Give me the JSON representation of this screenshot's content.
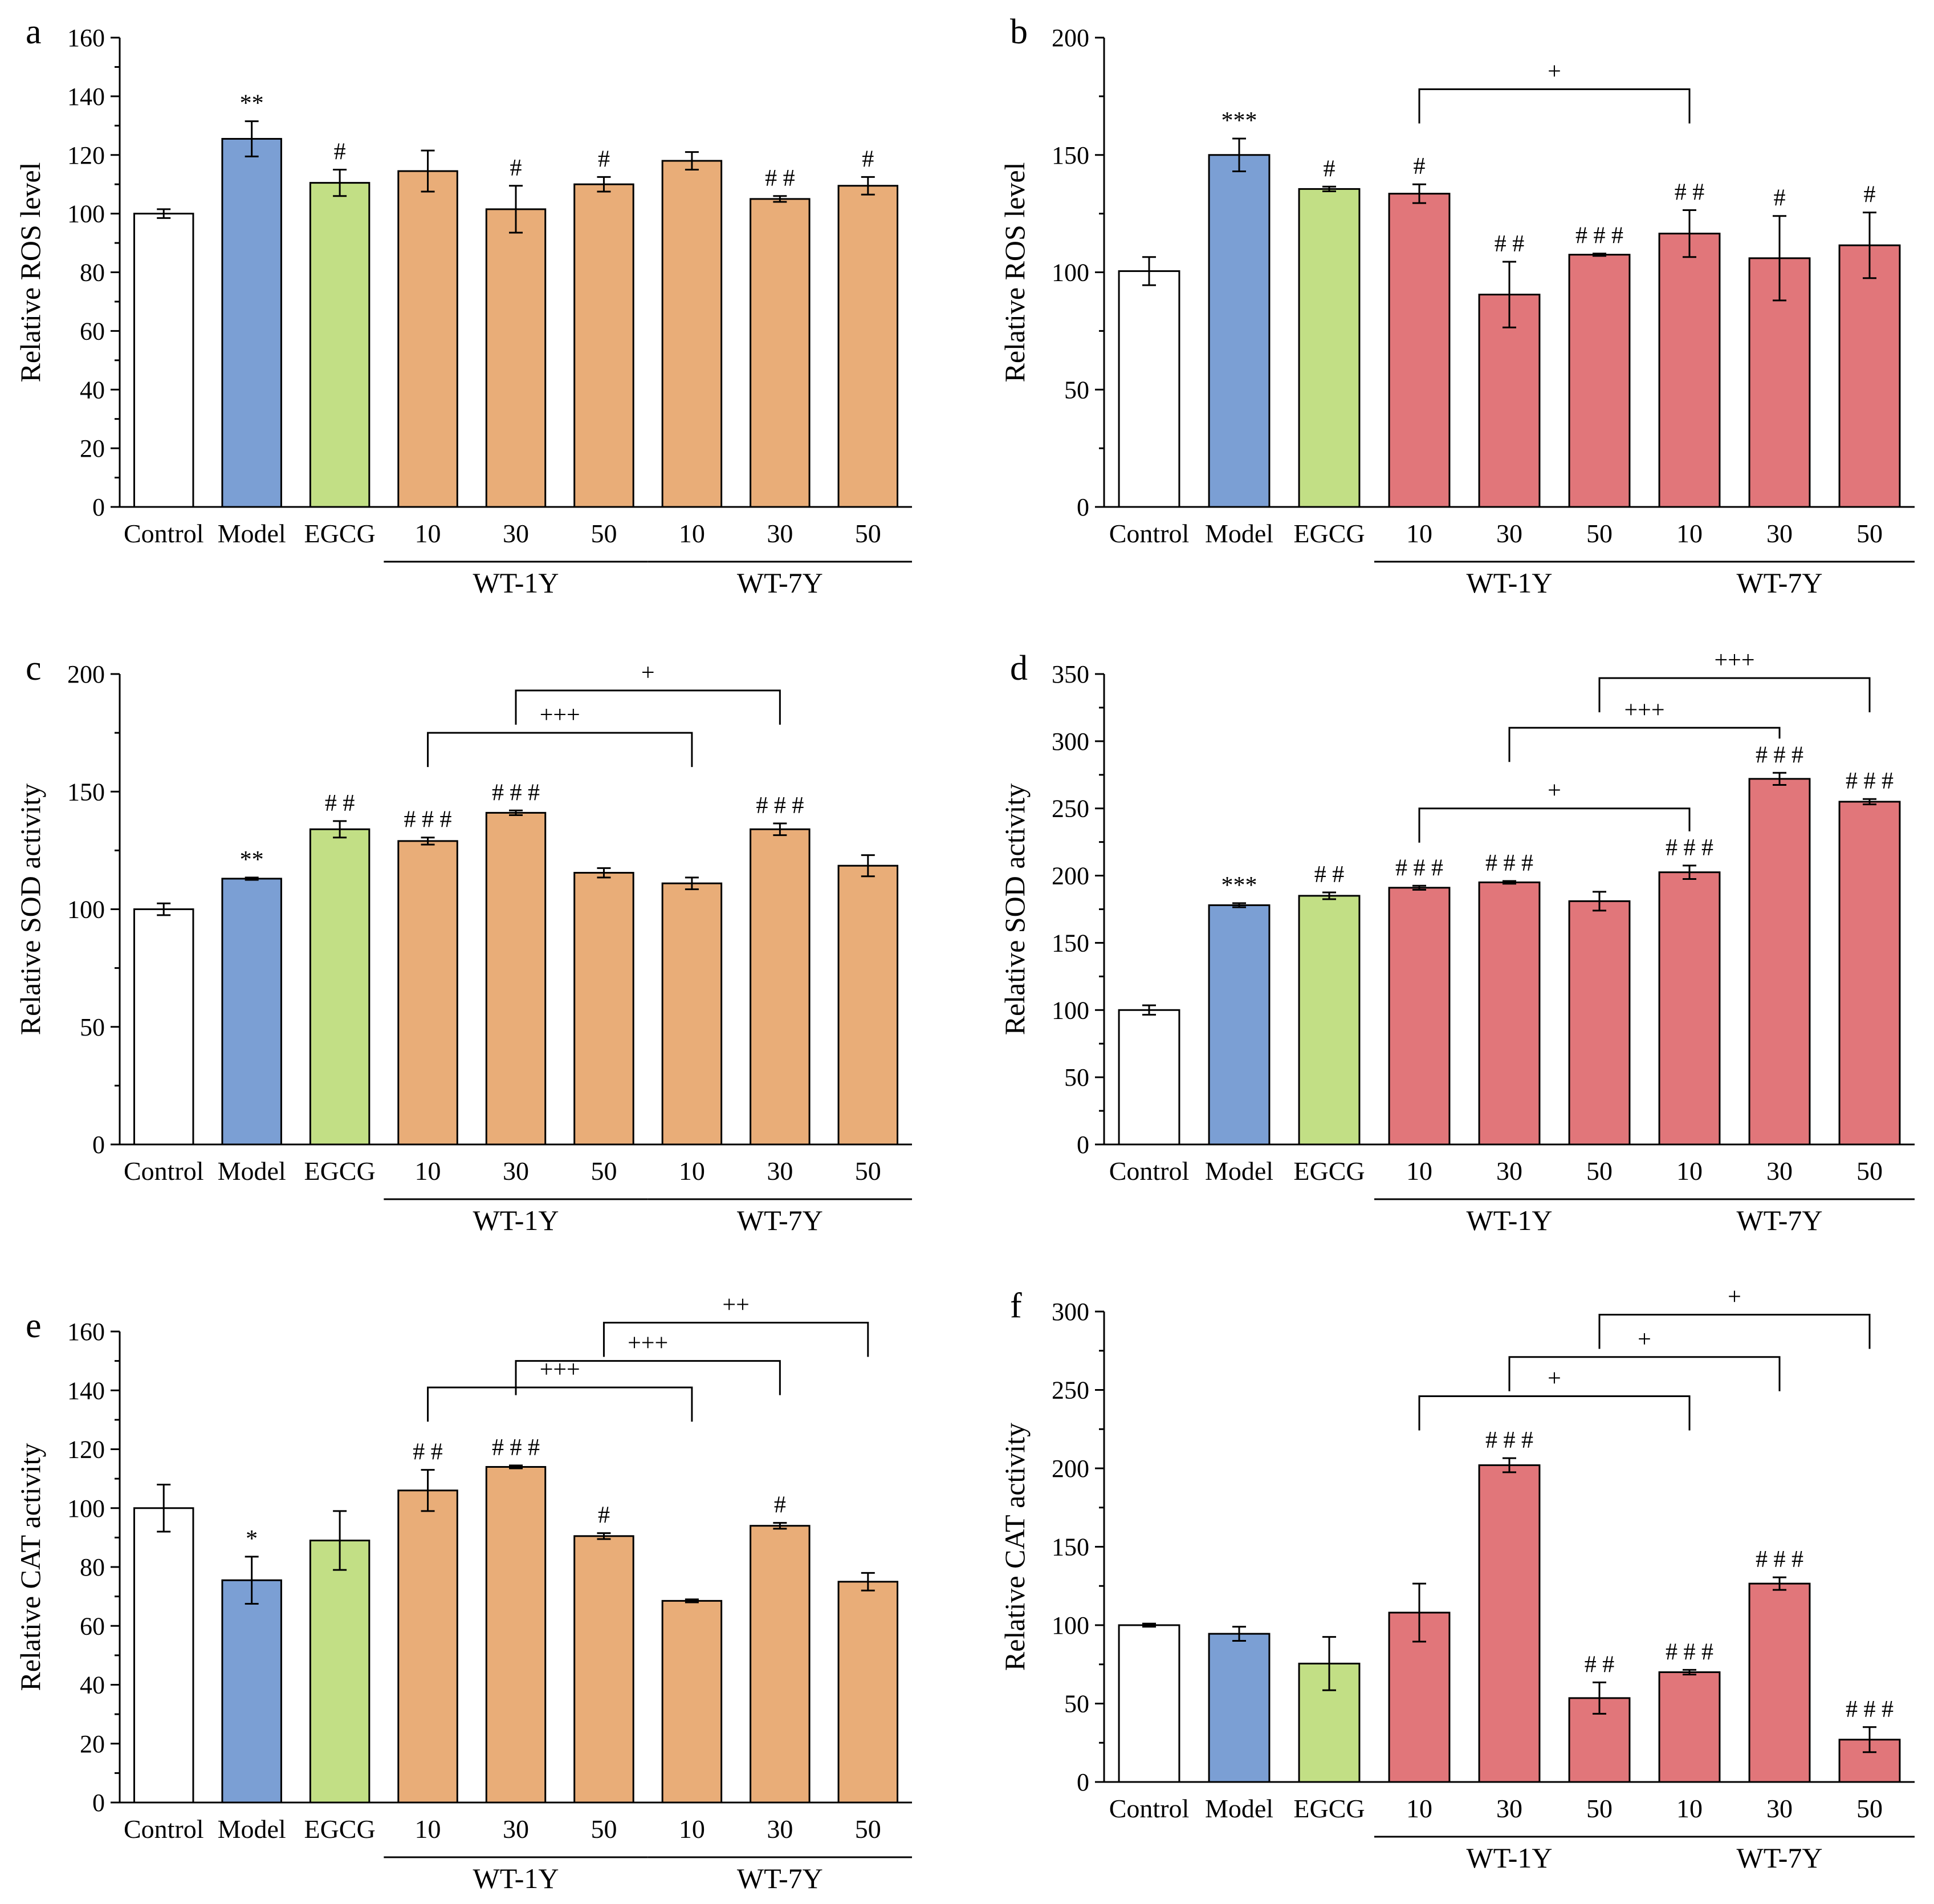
{
  "colors": {
    "control": "#ffffff",
    "model": "#7b9fd4",
    "egcg": "#c2df85",
    "wt1y_panel": "#e9ad78",
    "wt7y_panel": "#e1767a",
    "stroke": "#000000"
  },
  "chart_data": [
    {
      "panel": "a",
      "type": "bar",
      "ylabel": "Relative ROS level",
      "ylim": [
        0,
        160
      ],
      "yticks": [
        0,
        20,
        40,
        60,
        80,
        100,
        120,
        140,
        160
      ],
      "categories": [
        "Control",
        "Model",
        "EGCG",
        "10",
        "30",
        "50",
        "10",
        "30",
        "50"
      ],
      "groups": [
        {
          "label": "WT-1Y",
          "categories": [
            3,
            5
          ]
        },
        {
          "label": "WT-7Y",
          "categories": [
            6,
            8
          ]
        }
      ],
      "treatment_color": "wt1y_panel",
      "values": [
        100,
        125.5,
        110.5,
        114.5,
        101.5,
        110,
        118,
        105,
        109.5
      ],
      "errors": [
        1.5,
        6,
        4.5,
        7,
        8,
        2.5,
        3,
        1,
        3
      ],
      "annotations": [
        "",
        "**",
        "#",
        "",
        "#",
        "#",
        "",
        "# #",
        "#"
      ],
      "comparisons": []
    },
    {
      "panel": "b",
      "type": "bar",
      "ylabel": "Relative ROS level",
      "ylim": [
        0,
        200
      ],
      "yticks": [
        0,
        50,
        100,
        150,
        200
      ],
      "categories": [
        "Control",
        "Model",
        "EGCG",
        "10",
        "30",
        "50",
        "10",
        "30",
        "50"
      ],
      "groups": [
        {
          "label": "WT-1Y",
          "categories": [
            3,
            5
          ]
        },
        {
          "label": "WT-7Y",
          "categories": [
            6,
            8
          ]
        }
      ],
      "treatment_color": "wt7y_panel",
      "values": [
        100.5,
        150,
        135.5,
        133.5,
        90.5,
        107.5,
        116.5,
        106,
        111.5
      ],
      "errors": [
        6,
        7,
        1,
        4,
        14,
        0.5,
        10,
        18,
        14
      ],
      "annotations": [
        "",
        "***",
        "#",
        "#",
        "# #",
        "# # #",
        "# #",
        "#",
        "#"
      ],
      "comparisons": [
        {
          "from": 3,
          "to": 6,
          "label": "+",
          "y": 178
        }
      ]
    },
    {
      "panel": "c",
      "type": "bar",
      "ylabel": "Relative SOD activity",
      "ylim": [
        0,
        200
      ],
      "yticks": [
        0,
        50,
        100,
        150,
        200
      ],
      "categories": [
        "Control",
        "Model",
        "EGCG",
        "10",
        "30",
        "50",
        "10",
        "30",
        "50"
      ],
      "groups": [
        {
          "label": "WT-1Y",
          "categories": [
            3,
            5
          ]
        },
        {
          "label": "WT-7Y",
          "categories": [
            6,
            8
          ]
        }
      ],
      "treatment_color": "wt1y_panel",
      "values": [
        100,
        113,
        134,
        129,
        141,
        115.5,
        111,
        134,
        118.5
      ],
      "errors": [
        2.5,
        0.5,
        3.5,
        1.5,
        1,
        2,
        2.5,
        2.5,
        4.5
      ],
      "annotations": [
        "",
        "**",
        "# #",
        "# # #",
        "# # #",
        "",
        "",
        "# # #",
        ""
      ],
      "comparisons": [
        {
          "from": 3,
          "to": 6,
          "label": "+++",
          "y": 175
        },
        {
          "from": 4,
          "to": 7,
          "label": "+",
          "y": 193
        }
      ]
    },
    {
      "panel": "d",
      "type": "bar",
      "ylabel": "Relative SOD activity",
      "ylim": [
        0,
        350
      ],
      "yticks": [
        0,
        50,
        100,
        150,
        200,
        250,
        300,
        350
      ],
      "categories": [
        "Control",
        "Model",
        "EGCG",
        "10",
        "30",
        "50",
        "10",
        "30",
        "50"
      ],
      "groups": [
        {
          "label": "WT-1Y",
          "categories": [
            3,
            5
          ]
        },
        {
          "label": "WT-7Y",
          "categories": [
            6,
            8
          ]
        }
      ],
      "treatment_color": "wt7y_panel",
      "values": [
        100,
        178,
        185,
        191,
        195,
        181,
        202.5,
        272,
        255
      ],
      "errors": [
        3.5,
        1.5,
        2.5,
        1.5,
        1,
        7,
        5,
        4.5,
        2
      ],
      "annotations": [
        "",
        "***",
        "# #",
        "# # #",
        "# # #",
        "",
        "# # #",
        "# # #",
        "# # #"
      ],
      "comparisons": [
        {
          "from": 3,
          "to": 6,
          "label": "+",
          "y": 250
        },
        {
          "from": 4,
          "to": 7,
          "label": "+++",
          "y": 310
        },
        {
          "from": 5,
          "to": 8,
          "label": "+++",
          "y": 347
        }
      ]
    },
    {
      "panel": "e",
      "type": "bar",
      "ylabel": "Relative CAT activity",
      "ylim": [
        0,
        160
      ],
      "yticks": [
        0,
        20,
        40,
        60,
        80,
        100,
        120,
        140,
        160
      ],
      "categories": [
        "Control",
        "Model",
        "EGCG",
        "10",
        "30",
        "50",
        "10",
        "30",
        "50"
      ],
      "groups": [
        {
          "label": "WT-1Y",
          "categories": [
            3,
            5
          ]
        },
        {
          "label": "WT-7Y",
          "categories": [
            6,
            8
          ]
        }
      ],
      "treatment_color": "wt1y_panel",
      "values": [
        100,
        75.5,
        89,
        106,
        114,
        90.5,
        68.5,
        94,
        75
      ],
      "errors": [
        8,
        8,
        10,
        7,
        0.5,
        1,
        0.5,
        1,
        3
      ],
      "annotations": [
        "",
        "*",
        "",
        "# #",
        "# # #",
        "#",
        "",
        "#",
        ""
      ],
      "comparisons": [
        {
          "from": 3,
          "to": 6,
          "label": "+++",
          "y": 141
        },
        {
          "from": 4,
          "to": 7,
          "label": "+++",
          "y": 150
        },
        {
          "from": 5,
          "to": 8,
          "label": "++",
          "y": 163
        }
      ]
    },
    {
      "panel": "f",
      "type": "bar",
      "ylabel": "Relative CAT activity",
      "ylim": [
        0,
        300
      ],
      "yticks": [
        0,
        50,
        100,
        150,
        200,
        250,
        300
      ],
      "categories": [
        "Control",
        "Model",
        "EGCG",
        "10",
        "30",
        "50",
        "10",
        "30",
        "50"
      ],
      "groups": [
        {
          "label": "WT-1Y",
          "categories": [
            3,
            5
          ]
        },
        {
          "label": "WT-7Y",
          "categories": [
            6,
            8
          ]
        }
      ],
      "treatment_color": "wt7y_panel",
      "values": [
        100,
        94.5,
        75.5,
        108,
        202,
        53.5,
        70,
        126.5,
        27
      ],
      "errors": [
        1,
        4.5,
        17,
        18.5,
        4.5,
        10,
        1.5,
        4,
        8
      ],
      "annotations": [
        "",
        "",
        "",
        "",
        "# # #",
        "# #",
        "# # #",
        "# # #",
        "# # #"
      ],
      "comparisons": [
        {
          "from": 3,
          "to": 6,
          "label": "+",
          "y": 246
        },
        {
          "from": 4,
          "to": 7,
          "label": "+",
          "y": 271
        },
        {
          "from": 5,
          "to": 8,
          "label": "+",
          "y": 298
        }
      ]
    }
  ]
}
